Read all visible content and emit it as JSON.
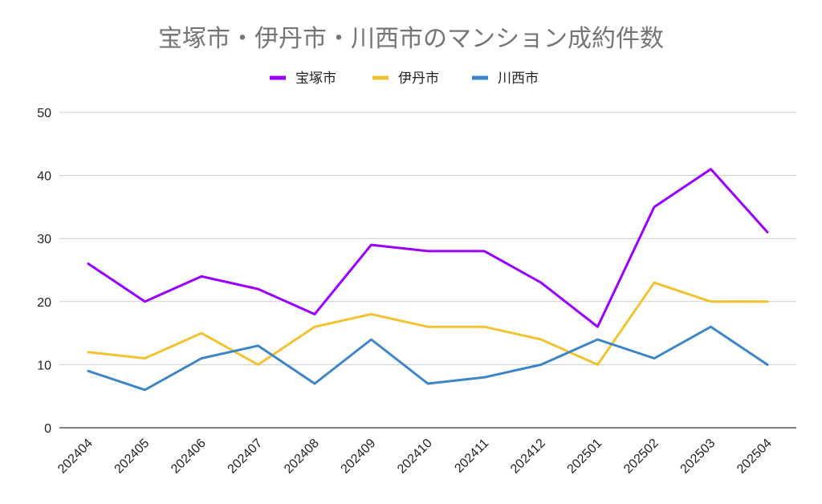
{
  "chart_data": {
    "type": "line",
    "title": "宝塚市・伊丹市・川西市のマンション成約件数",
    "xlabel": "",
    "ylabel": "",
    "categories": [
      "202404",
      "202405",
      "202406",
      "202407",
      "202408",
      "202409",
      "202410",
      "202411",
      "202412",
      "202501",
      "202502",
      "202503",
      "202504"
    ],
    "ylim": [
      0,
      50
    ],
    "yticks": [
      0,
      10,
      20,
      30,
      40,
      50
    ],
    "grid": true,
    "legend_position": "top",
    "series": [
      {
        "name": "宝塚市",
        "color": "#9b00ff",
        "values": [
          26,
          20,
          24,
          22,
          18,
          29,
          28,
          28,
          23,
          16,
          35,
          41,
          31
        ]
      },
      {
        "name": "伊丹市",
        "color": "#f1c232",
        "values": [
          12,
          11,
          15,
          10,
          16,
          18,
          16,
          16,
          14,
          10,
          23,
          20,
          20
        ]
      },
      {
        "name": "川西市",
        "color": "#3d85c6",
        "values": [
          9,
          6,
          11,
          13,
          7,
          14,
          7,
          8,
          10,
          14,
          11,
          16,
          10
        ]
      }
    ]
  }
}
